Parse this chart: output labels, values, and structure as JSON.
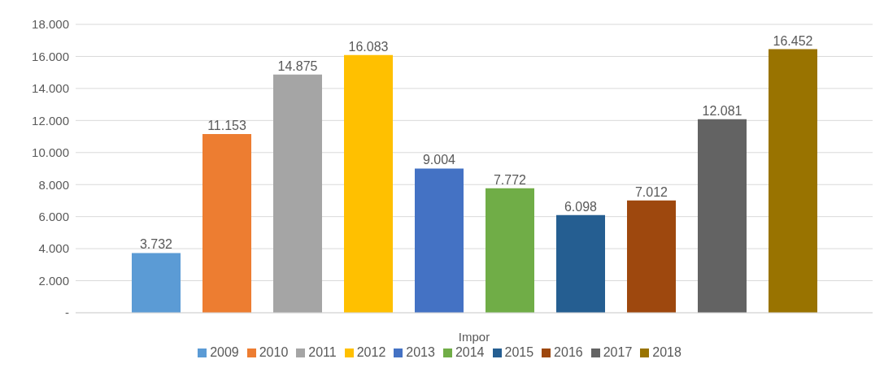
{
  "chart_data": {
    "type": "bar",
    "categories": [
      "Impor"
    ],
    "series": [
      {
        "name": "2009",
        "color": "#5b9bd5",
        "values": [
          3732
        ],
        "value_labels": [
          "3.732"
        ]
      },
      {
        "name": "2010",
        "color": "#ed7d31",
        "values": [
          11153
        ],
        "value_labels": [
          "11.153"
        ]
      },
      {
        "name": "2011",
        "color": "#a5a5a5",
        "values": [
          14875
        ],
        "value_labels": [
          "14.875"
        ]
      },
      {
        "name": "2012",
        "color": "#ffc000",
        "values": [
          16083
        ],
        "value_labels": [
          "16.083"
        ]
      },
      {
        "name": "2013",
        "color": "#4472c4",
        "values": [
          9004
        ],
        "value_labels": [
          "9.004"
        ]
      },
      {
        "name": "2014",
        "color": "#70ad47",
        "values": [
          7772
        ],
        "value_labels": [
          "7.772"
        ]
      },
      {
        "name": "2015",
        "color": "#255e91",
        "values": [
          6098
        ],
        "value_labels": [
          "6.098"
        ]
      },
      {
        "name": "2016",
        "color": "#9e480e",
        "values": [
          7012
        ],
        "value_labels": [
          "7.012"
        ]
      },
      {
        "name": "2017",
        "color": "#636363",
        "values": [
          12081
        ],
        "value_labels": [
          "12.081"
        ]
      },
      {
        "name": "2018",
        "color": "#997300",
        "values": [
          16452
        ],
        "value_labels": [
          "16.452"
        ]
      }
    ],
    "ylim": [
      0,
      18000
    ],
    "yticks": [
      {
        "value": 0,
        "label": "-"
      },
      {
        "value": 2000,
        "label": "2.000"
      },
      {
        "value": 4000,
        "label": "4.000"
      },
      {
        "value": 6000,
        "label": "6.000"
      },
      {
        "value": 8000,
        "label": "8.000"
      },
      {
        "value": 10000,
        "label": "10.000"
      },
      {
        "value": 12000,
        "label": "12.000"
      },
      {
        "value": 14000,
        "label": "14.000"
      },
      {
        "value": 16000,
        "label": "16.000"
      },
      {
        "value": 18000,
        "label": "18.000"
      }
    ],
    "grid": "y",
    "legend": "bottom"
  }
}
